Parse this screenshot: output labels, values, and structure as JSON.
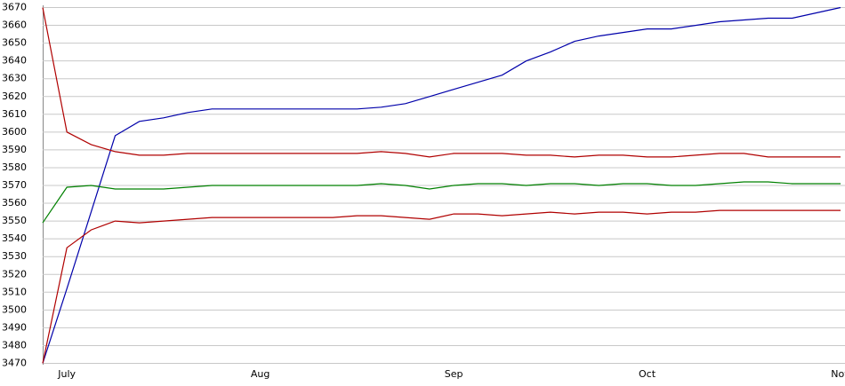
{
  "chart_data": {
    "type": "line",
    "categories": [
      null,
      "July",
      null,
      null,
      null,
      null,
      null,
      null,
      null,
      "Aug",
      null,
      null,
      null,
      null,
      null,
      null,
      null,
      "Sep",
      null,
      null,
      null,
      null,
      null,
      null,
      null,
      "Oct",
      null,
      null,
      null,
      null,
      null,
      null,
      null,
      "Nov"
    ],
    "series": [
      {
        "color": "#0000aa",
        "values": [
          3470,
          3512,
          3555,
          3598,
          3606,
          3608,
          3611,
          3613,
          3613,
          3613,
          3613,
          3613,
          3613,
          3613,
          3614,
          3616,
          3620,
          3624,
          3628,
          3632,
          3640,
          3645,
          3651,
          3654,
          3656,
          3658,
          3658,
          3660,
          3662,
          3663,
          3664,
          3664,
          3667,
          3670
        ]
      },
      {
        "color": "#b00000",
        "values": [
          3670,
          3600,
          3593,
          3589,
          3587,
          3587,
          3588,
          3588,
          3588,
          3588,
          3588,
          3588,
          3588,
          3588,
          3589,
          3588,
          3586,
          3588,
          3588,
          3588,
          3587,
          3587,
          3586,
          3587,
          3587,
          3586,
          3586,
          3587,
          3588,
          3588,
          3586,
          3586,
          3586,
          3586
        ]
      },
      {
        "color": "#008000",
        "values": [
          3549,
          3569,
          3570,
          3568,
          3568,
          3568,
          3569,
          3570,
          3570,
          3570,
          3570,
          3570,
          3570,
          3570,
          3571,
          3570,
          3568,
          3570,
          3571,
          3571,
          3570,
          3571,
          3571,
          3570,
          3571,
          3571,
          3570,
          3570,
          3571,
          3572,
          3572,
          3571,
          3571,
          3571
        ]
      },
      {
        "color": "#b00000",
        "values": [
          3470,
          3535,
          3545,
          3550,
          3549,
          3550,
          3551,
          3552,
          3552,
          3552,
          3552,
          3552,
          3552,
          3553,
          3553,
          3552,
          3551,
          3554,
          3554,
          3553,
          3554,
          3555,
          3554,
          3555,
          3555,
          3554,
          3555,
          3555,
          3556,
          3556,
          3556,
          3556,
          3556,
          3556
        ]
      }
    ],
    "ylim": [
      3470,
      3670
    ],
    "yticks": [
      3470,
      3480,
      3490,
      3500,
      3510,
      3520,
      3530,
      3540,
      3550,
      3560,
      3570,
      3580,
      3590,
      3600,
      3610,
      3620,
      3630,
      3640,
      3650,
      3660,
      3670
    ],
    "grid": true
  }
}
